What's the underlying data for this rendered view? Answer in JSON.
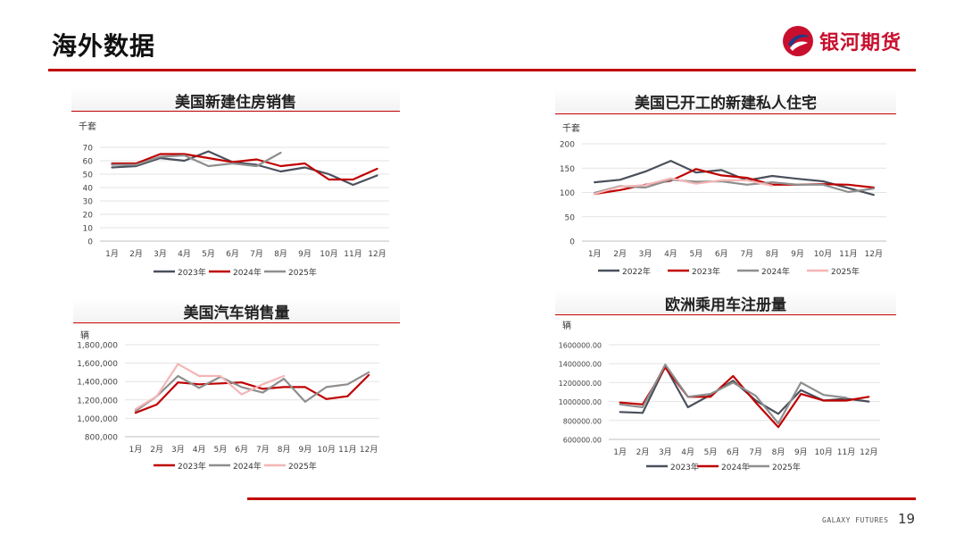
{
  "header": {
    "title": "海外数据",
    "logo_text": "银河期货"
  },
  "footer": {
    "brand": "GALAXY FUTURES",
    "page": "19"
  },
  "colors": {
    "accent": "#c00000",
    "logo_red": "#c8102e",
    "logo_blue": "#1f3c88"
  },
  "chart_data": [
    {
      "id": "us-new-home-sales",
      "type": "line",
      "title": "美国新建住房销售",
      "unit": "千套",
      "categories": [
        "1月",
        "2月",
        "3月",
        "4月",
        "5月",
        "6月",
        "7月",
        "8月",
        "9月",
        "10月",
        "11月",
        "12月"
      ],
      "ylim": [
        0,
        70
      ],
      "yticks": [
        0,
        10,
        20,
        30,
        40,
        50,
        60,
        70
      ],
      "ytick_labels": [
        "0",
        "10",
        "20",
        "30",
        "40",
        "50",
        "60",
        "70"
      ],
      "grid": true,
      "legend": "bottom",
      "series": [
        {
          "name": "2023年",
          "color": "#4a505c",
          "values": [
            55,
            56,
            62,
            60,
            67,
            59,
            57,
            52,
            55,
            50,
            42,
            49
          ]
        },
        {
          "name": "2024年",
          "color": "#c00000",
          "values": [
            58,
            58,
            65,
            65,
            62,
            59,
            61,
            56,
            58,
            46,
            46,
            54
          ]
        },
        {
          "name": "2025年",
          "color": "#8e8e8e",
          "values": [
            57,
            57,
            63,
            64,
            56,
            58,
            56,
            66,
            null,
            null,
            null,
            null
          ]
        }
      ]
    },
    {
      "id": "us-private-housing-starts",
      "type": "line",
      "title": "美国已开工的新建私人住宅",
      "unit": "千套",
      "categories": [
        "1月",
        "2月",
        "3月",
        "4月",
        "5月",
        "6月",
        "7月",
        "8月",
        "9月",
        "10月",
        "11月",
        "12月"
      ],
      "ylim": [
        0,
        200
      ],
      "yticks": [
        0,
        50,
        100,
        150,
        200
      ],
      "ytick_labels": [
        "0",
        "50",
        "100",
        "150",
        "200"
      ],
      "grid": true,
      "legend": "bottom",
      "series": [
        {
          "name": "2022年",
          "color": "#4a505c",
          "values": [
            121,
            126,
            143,
            165,
            141,
            146,
            125,
            134,
            128,
            123,
            109,
            95
          ]
        },
        {
          "name": "2023年",
          "color": "#c00000",
          "values": [
            97,
            105,
            116,
            124,
            148,
            135,
            130,
            116,
            116,
            117,
            116,
            110
          ]
        },
        {
          "name": "2024年",
          "color": "#8e8e8e",
          "values": [
            99,
            113,
            110,
            126,
            122,
            123,
            116,
            121,
            116,
            116,
            101,
            108
          ]
        },
        {
          "name": "2025年",
          "color": "#f4b6b6",
          "values": [
            97,
            112,
            115,
            129,
            118,
            125,
            125,
            114,
            null,
            null,
            null,
            null
          ]
        }
      ]
    },
    {
      "id": "us-auto-sales",
      "type": "line",
      "title": "美国汽车销售量",
      "unit": "辆",
      "categories": [
        "1月",
        "2月",
        "3月",
        "4月",
        "5月",
        "6月",
        "7月",
        "8月",
        "9月",
        "10月",
        "11月",
        "12月"
      ],
      "ylim": [
        800000,
        1800000
      ],
      "yticks": [
        800000,
        1000000,
        1200000,
        1400000,
        1600000,
        1800000
      ],
      "ytick_labels": [
        "800,000",
        "1,000,000",
        "1,200,000",
        "1,400,000",
        "1,600,000",
        "1,800,000"
      ],
      "grid": true,
      "legend": "bottom",
      "series": [
        {
          "name": "2023年",
          "color": "#c00000",
          "values": [
            1060000,
            1150000,
            1390000,
            1370000,
            1380000,
            1390000,
            1320000,
            1340000,
            1340000,
            1210000,
            1240000,
            1470000
          ]
        },
        {
          "name": "2024年",
          "color": "#8e8e8e",
          "values": [
            1080000,
            1240000,
            1460000,
            1330000,
            1450000,
            1340000,
            1280000,
            1430000,
            1180000,
            1340000,
            1370000,
            1500000
          ]
        },
        {
          "name": "2025年",
          "color": "#f4b6b6",
          "values": [
            1100000,
            1240000,
            1590000,
            1460000,
            1460000,
            1260000,
            1370000,
            1460000,
            null,
            null,
            null,
            null
          ]
        }
      ]
    },
    {
      "id": "eu-car-registrations",
      "type": "line",
      "title": "欧洲乘用车注册量",
      "unit": "辆",
      "categories": [
        "1月",
        "2月",
        "3月",
        "4月",
        "5月",
        "6月",
        "7月",
        "8月",
        "9月",
        "10月",
        "11月",
        "12月"
      ],
      "ylim": [
        600000,
        1600000
      ],
      "yticks": [
        600000,
        800000,
        1000000,
        1200000,
        1400000,
        1600000
      ],
      "ytick_labels": [
        "600000.00",
        "800000.00",
        "1000000.00",
        "1200000.00",
        "1400000.00",
        "1600000.00"
      ],
      "grid": true,
      "legend": "bottom",
      "series": [
        {
          "name": "2023年",
          "color": "#4a505c",
          "values": [
            890000,
            880000,
            1370000,
            940000,
            1070000,
            1220000,
            1010000,
            870000,
            1120000,
            1010000,
            1030000,
            1000000
          ]
        },
        {
          "name": "2024年",
          "color": "#c00000",
          "values": [
            990000,
            970000,
            1360000,
            1050000,
            1050000,
            1270000,
            990000,
            730000,
            1080000,
            1010000,
            1010000,
            1050000
          ]
        },
        {
          "name": "2025年",
          "color": "#8e8e8e",
          "values": [
            970000,
            940000,
            1390000,
            1050000,
            1080000,
            1200000,
            1060000,
            770000,
            1200000,
            1070000,
            1040000,
            null
          ]
        }
      ]
    }
  ]
}
